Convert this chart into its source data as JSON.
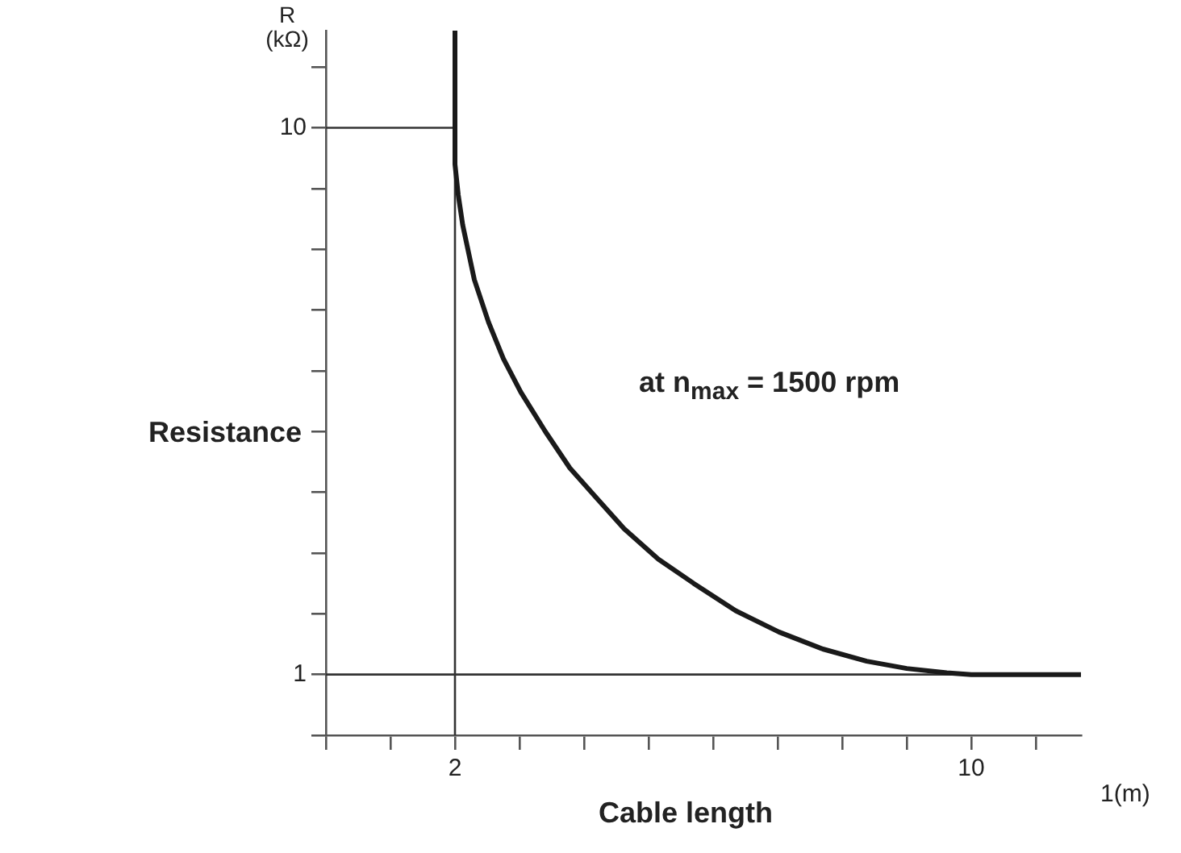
{
  "chart_data": {
    "type": "line",
    "xlabel": "Cable length",
    "ylabel": "Resistance",
    "annotations": [
      "R (kΩ)",
      "1(m)",
      "at n$_{max}$ = 1500 rpm"
    ],
    "xlim": [
      0,
      11.7
    ],
    "ylim": [
      0,
      11.6
    ],
    "xticks": [
      {
        "value": 0,
        "label": null
      },
      {
        "value": 1,
        "label": null
      },
      2,
      {
        "value": 3,
        "label": null
      },
      {
        "value": 4,
        "label": null
      },
      {
        "value": 5,
        "label": null
      },
      {
        "value": 6,
        "label": null
      },
      {
        "value": 7,
        "label": null
      },
      {
        "value": 8,
        "label": null
      },
      {
        "value": 9,
        "label": null
      },
      10,
      {
        "value": 11,
        "label": null
      }
    ],
    "yticks": [
      {
        "value": 0,
        "label": null
      },
      1,
      {
        "value": 2,
        "label": null
      },
      {
        "value": 3,
        "label": null
      },
      {
        "value": 4,
        "label": null
      },
      {
        "value": 5,
        "label": null
      },
      {
        "value": 6,
        "label": null
      },
      {
        "value": 7,
        "label": null
      },
      {
        "value": 8,
        "label": null
      },
      {
        "value": 9,
        "label": null
      },
      10,
      {
        "value": 11,
        "label": null
      }
    ],
    "marker": "none",
    "series": [
      {
        "color": "#1a1a1a",
        "x": [
          2,
          2,
          2.05,
          2.12,
          2.3,
          2.52,
          2.75,
          3.02,
          3.4,
          3.78,
          4.2,
          4.62,
          5.15,
          5.7,
          6.35,
          7.02,
          7.7,
          8.38,
          9,
          9.62,
          10,
          11.7
        ],
        "values": [
          11.6,
          9.4,
          8.9,
          8.4,
          7.5,
          6.8,
          6.2,
          5.65,
          5,
          4.4,
          3.9,
          3.4,
          2.9,
          2.5,
          2.05,
          1.7,
          1.42,
          1.22,
          1.1,
          1.03,
          1,
          1
        ]
      },
      {
        "color": "#333333",
        "x": [
          0,
          2
        ],
        "values": [
          10,
          10
        ]
      }
    ],
    "ref_lines": [
      {
        "axis": "x",
        "value": 2,
        "color": "#333333"
      },
      {
        "axis": "y",
        "value": 1,
        "color": "#333333"
      }
    ]
  }
}
